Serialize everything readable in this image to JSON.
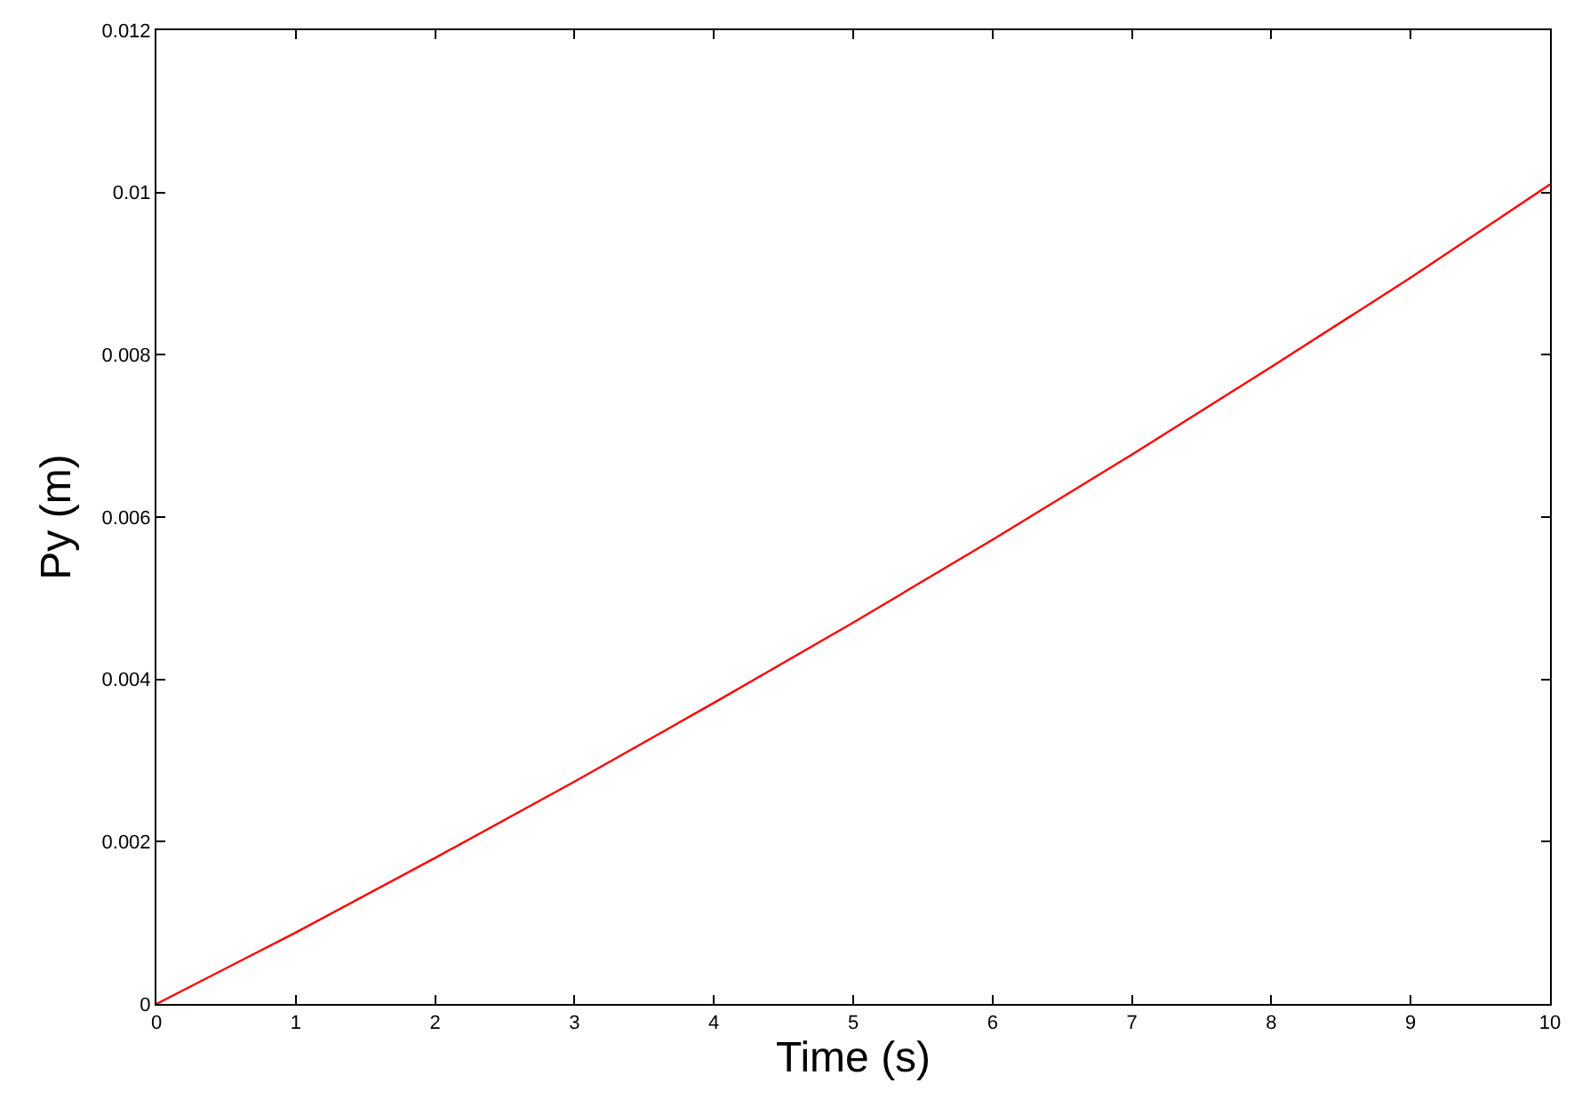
{
  "chart_data": {
    "type": "line",
    "xlabel": "Time (s)",
    "ylabel": "Py (m)",
    "x": [
      0,
      1,
      2,
      3,
      4,
      5,
      6,
      7,
      8,
      9,
      10
    ],
    "series": [
      {
        "color": "#ff0000",
        "values": [
          0,
          0.00088,
          0.0018,
          0.00274,
          0.00371,
          0.0047,
          0.00572,
          0.00677,
          0.00785,
          0.00895,
          0.0101
        ]
      }
    ],
    "xlim": [
      0,
      10
    ],
    "xticks": [
      0,
      1,
      2,
      3,
      4,
      5,
      6,
      7,
      8,
      9,
      10
    ],
    "ylim": [
      0,
      0.012
    ],
    "yticks": [
      0,
      0.002,
      0.004,
      0.006,
      0.008,
      0.01,
      0.012
    ],
    "legend": false,
    "marker": "none",
    "line_style": "solid"
  }
}
